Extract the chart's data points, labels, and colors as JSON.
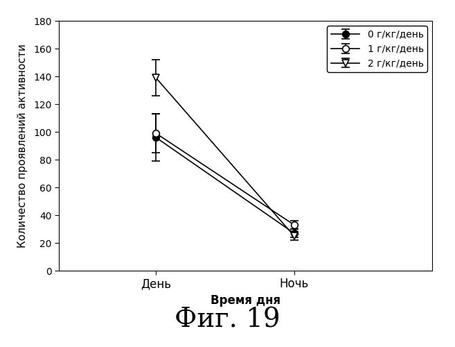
{
  "x_labels": [
    "День",
    "Ночь"
  ],
  "x_positions": [
    1,
    2
  ],
  "xlim": [
    0.3,
    3.0
  ],
  "series": [
    {
      "label": "0 г/кг/день",
      "values": [
        96,
        27
      ],
      "yerr": [
        17,
        3
      ],
      "color": "#000000",
      "marker": "o",
      "markersize": 7,
      "markerfacecolor": "#000000",
      "linestyle": "-"
    },
    {
      "label": "1 г/кг/день",
      "values": [
        99,
        33
      ],
      "yerr": [
        14,
        3
      ],
      "color": "#000000",
      "marker": "o",
      "markersize": 7,
      "markerfacecolor": "#ffffff",
      "linestyle": "-"
    },
    {
      "label": "2 г/кг/день",
      "values": [
        139,
        25
      ],
      "yerr": [
        13,
        3
      ],
      "color": "#000000",
      "marker": "v",
      "markersize": 7,
      "markerfacecolor": "#ffffff",
      "linestyle": "-"
    }
  ],
  "ylabel": "Количество проявлений активности",
  "xlabel": "Время дня",
  "ylim": [
    0,
    180
  ],
  "yticks": [
    0,
    20,
    40,
    60,
    80,
    100,
    120,
    140,
    160,
    180
  ],
  "title_fig": "Фиг. 19",
  "background_color": "#ffffff",
  "legend_loc": "upper right"
}
